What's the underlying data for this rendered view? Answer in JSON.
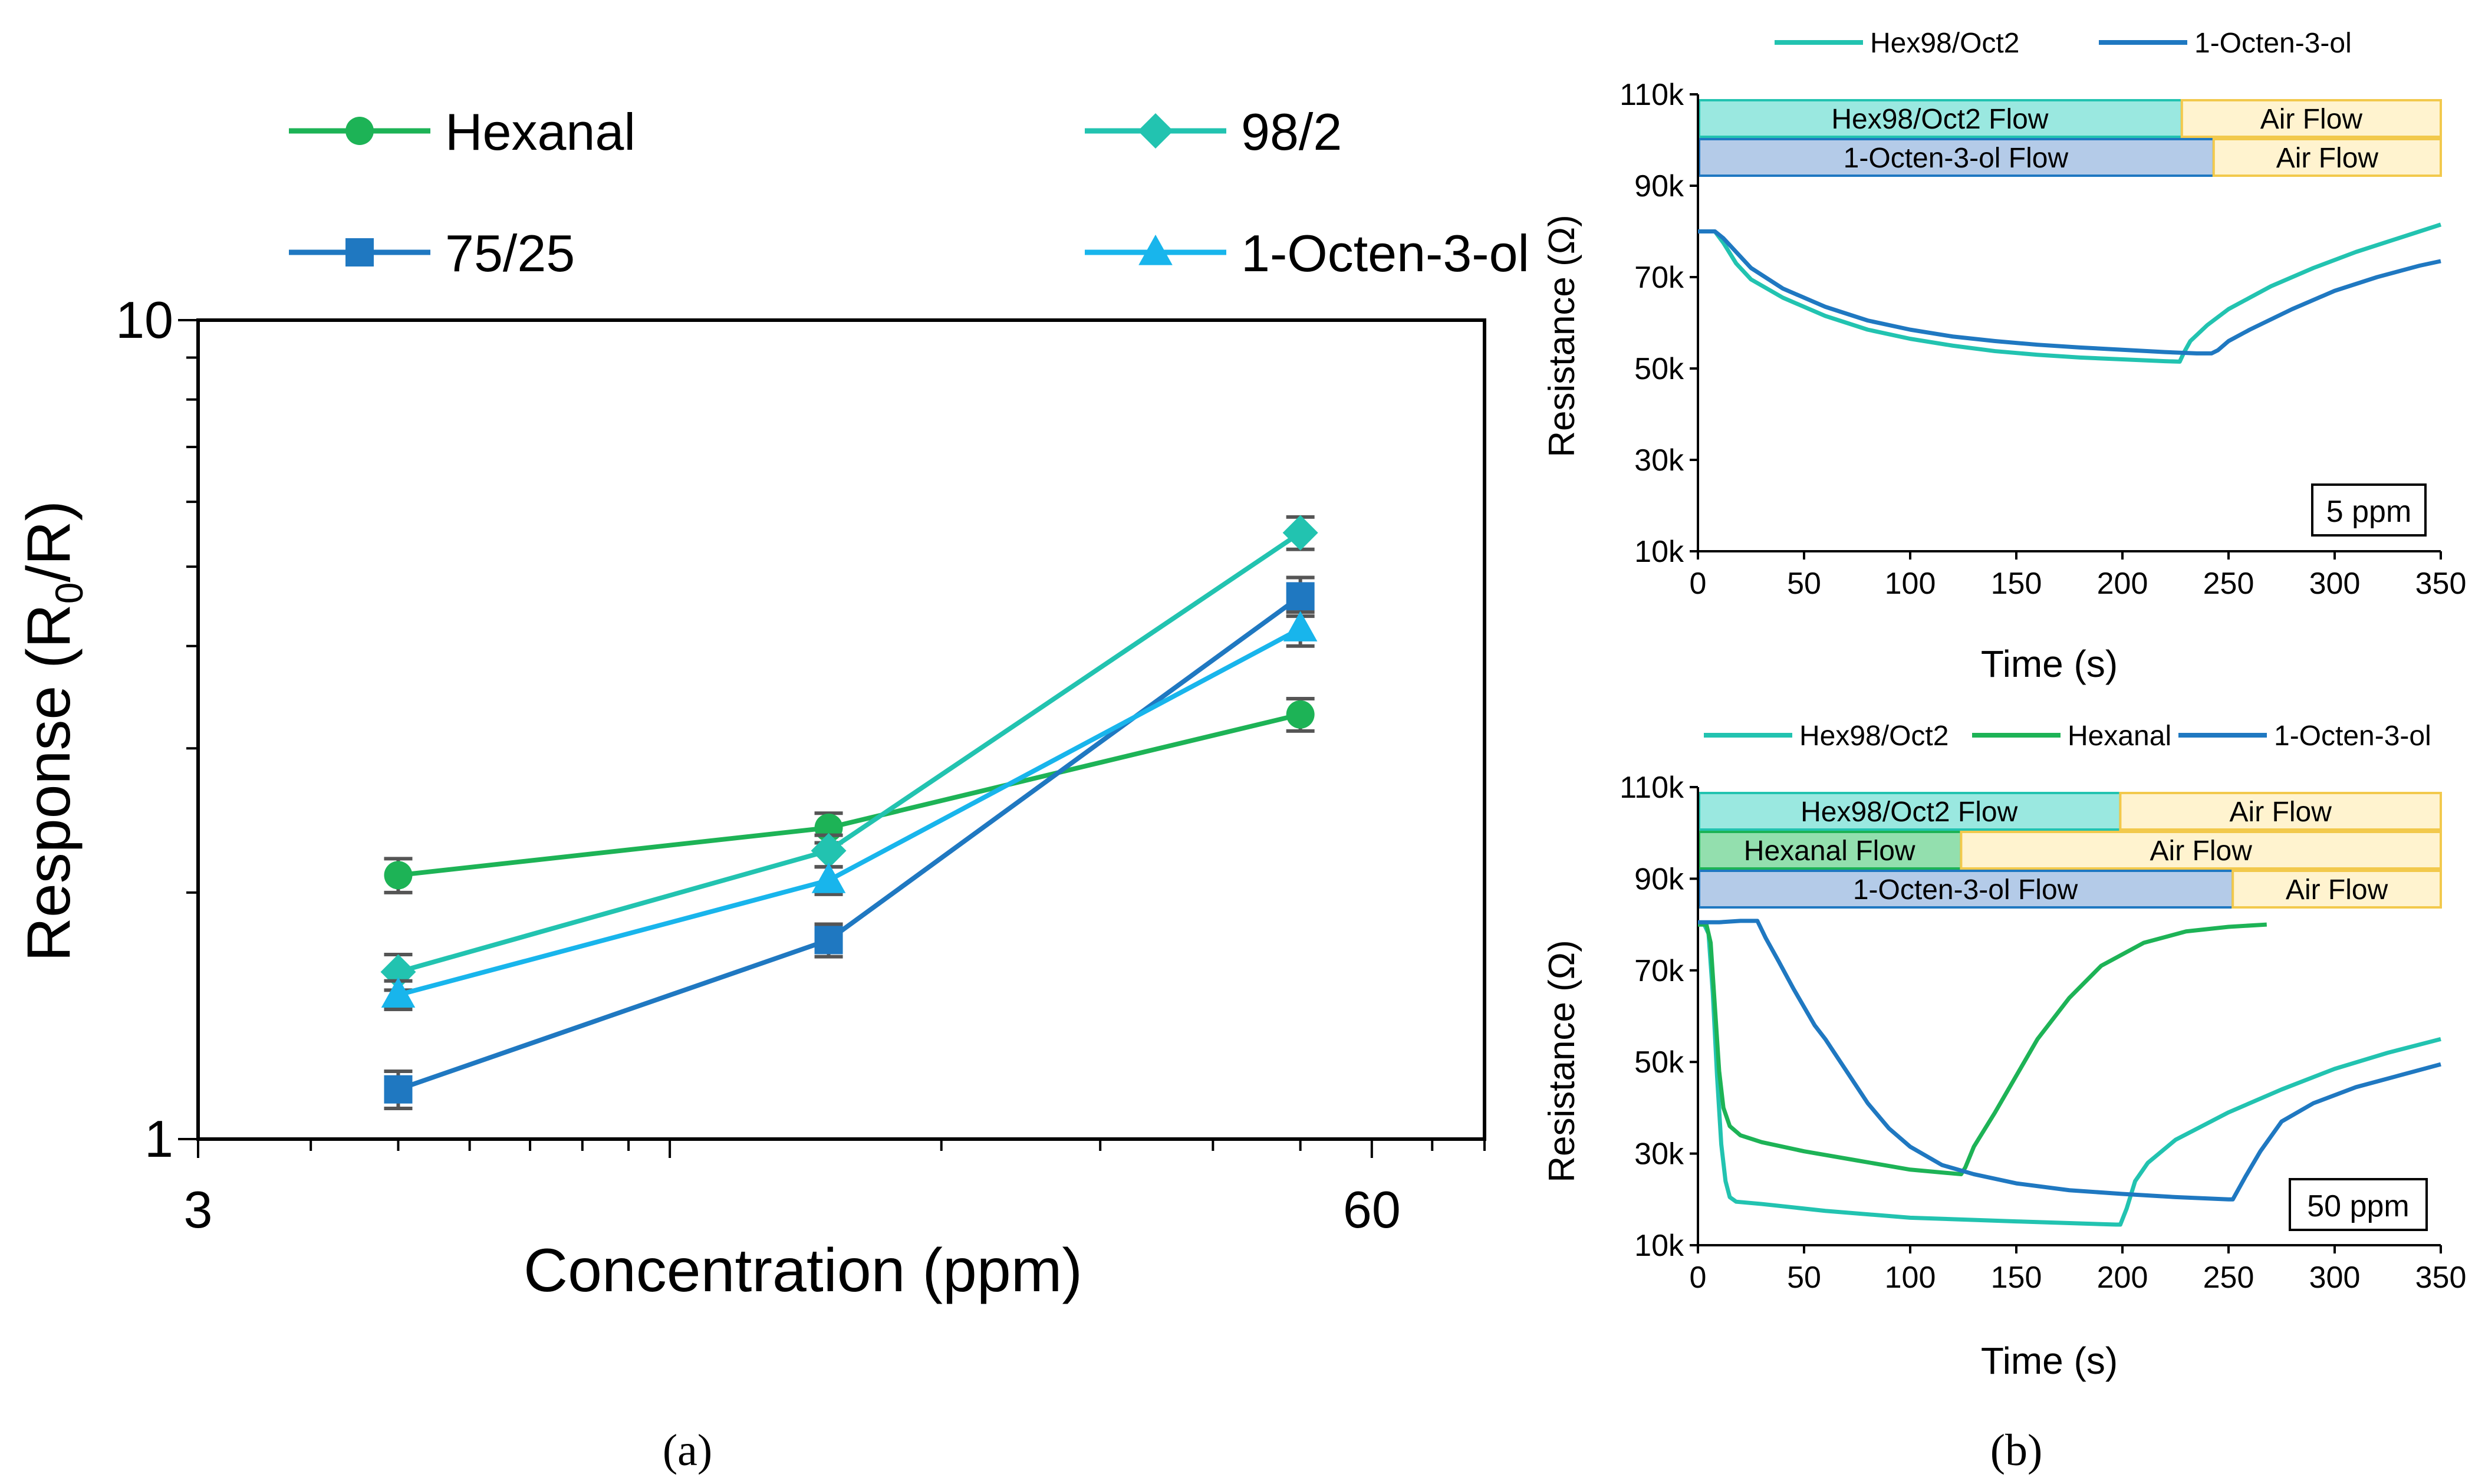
{
  "captions": {
    "a": "(a)",
    "b": "(b)"
  },
  "chart_data": [
    {
      "type": "line",
      "panel": "a",
      "xscale": "log",
      "yscale": "log",
      "xlabel": "Concentration (ppm)",
      "ylabel_main": "Response (R",
      "ylabel_sub": "0",
      "ylabel_end": "/R)",
      "xlim": [
        3,
        80
      ],
      "ylim": [
        1,
        10
      ],
      "x_tick_labels": [
        {
          "value": 3,
          "label": "3"
        },
        {
          "value": 60,
          "label": "60"
        }
      ],
      "y_tick_labels": [
        {
          "value": 1,
          "label": "1"
        },
        {
          "value": 10,
          "label": "10"
        }
      ],
      "legend_position": "top",
      "series": [
        {
          "name": "Hexanal",
          "marker": "circle",
          "color": "#1db356",
          "x": [
            5,
            15,
            50
          ],
          "y": [
            2.1,
            2.4,
            3.3
          ],
          "err": [
            0.1,
            0.1,
            0.15
          ]
        },
        {
          "name": "98/2",
          "marker": "diamond",
          "color": "#22c3b0",
          "x": [
            5,
            15,
            50
          ],
          "y": [
            1.6,
            2.25,
            5.5
          ],
          "err": [
            0.08,
            0.1,
            0.25
          ]
        },
        {
          "name": "75/25",
          "marker": "square",
          "color": "#1f78c1",
          "x": [
            5,
            15,
            50
          ],
          "y": [
            1.15,
            1.75,
            4.6
          ],
          "err": [
            0.06,
            0.08,
            0.25
          ]
        },
        {
          "name": "1-Octen-3-ol",
          "marker": "triangle",
          "color": "#18b5ec",
          "x": [
            5,
            15,
            50
          ],
          "y": [
            1.5,
            2.07,
            4.2
          ],
          "err": [
            0.06,
            0.08,
            0.2
          ]
        }
      ]
    },
    {
      "type": "line",
      "panel": "b-top",
      "xlabel": "Time (s)",
      "ylabel": "Resistance (Ω)",
      "xlim": [
        0,
        350
      ],
      "ylim": [
        10000,
        110000
      ],
      "x_ticks": [
        0,
        50,
        100,
        150,
        200,
        250,
        300,
        350
      ],
      "y_ticks": [
        {
          "value": 10000,
          "label": "10k"
        },
        {
          "value": 30000,
          "label": "30k"
        },
        {
          "value": 50000,
          "label": "50k"
        },
        {
          "value": 70000,
          "label": "70k"
        },
        {
          "value": 90000,
          "label": "90k"
        },
        {
          "value": 110000,
          "label": "110k"
        }
      ],
      "annotation": "5 ppm",
      "legend_position": "top",
      "flow_bars": [
        {
          "gas": "Hex98/Oct2 Flow",
          "air": "Air Flow",
          "switch": 228,
          "color": "#9ae8e0",
          "edge": "#22c3b0"
        },
        {
          "gas": "1-Octen-3-ol Flow",
          "air": "Air Flow",
          "switch": 243,
          "color": "#b4cbe8",
          "edge": "#1f78c1"
        }
      ],
      "series": [
        {
          "name": "Hex98/Oct2",
          "color": "#22c3b0",
          "x": [
            0,
            5,
            8,
            12,
            18,
            25,
            40,
            60,
            80,
            100,
            120,
            140,
            160,
            180,
            200,
            220,
            227,
            229,
            232,
            240,
            250,
            270,
            290,
            310,
            330,
            350
          ],
          "y": [
            80000,
            80000,
            80000,
            77500,
            73000,
            69500,
            65500,
            61500,
            58500,
            56500,
            55000,
            53800,
            53000,
            52400,
            52000,
            51600,
            51500,
            53500,
            56000,
            59500,
            63000,
            68000,
            72000,
            75500,
            78500,
            81500
          ]
        },
        {
          "name": "1-Octen-3-ol",
          "color": "#1f78c1",
          "x": [
            0,
            5,
            8,
            12,
            18,
            25,
            40,
            60,
            80,
            100,
            120,
            140,
            160,
            180,
            200,
            220,
            235,
            242,
            245,
            250,
            260,
            280,
            300,
            320,
            340,
            350
          ],
          "y": [
            80000,
            80000,
            80000,
            78500,
            75500,
            72000,
            67500,
            63500,
            60500,
            58500,
            57000,
            56000,
            55200,
            54600,
            54100,
            53600,
            53300,
            53300,
            54000,
            56000,
            58500,
            63000,
            67000,
            70000,
            72500,
            73500
          ]
        }
      ]
    },
    {
      "type": "line",
      "panel": "b-bottom",
      "xlabel": "Time (s)",
      "ylabel": "Resistance (Ω)",
      "xlim": [
        0,
        350
      ],
      "ylim": [
        10000,
        110000
      ],
      "x_ticks": [
        0,
        50,
        100,
        150,
        200,
        250,
        300,
        350
      ],
      "y_ticks": [
        {
          "value": 10000,
          "label": "10k"
        },
        {
          "value": 30000,
          "label": "30k"
        },
        {
          "value": 50000,
          "label": "50k"
        },
        {
          "value": 70000,
          "label": "70k"
        },
        {
          "value": 90000,
          "label": "90k"
        },
        {
          "value": 110000,
          "label": "110k"
        }
      ],
      "annotation": "50 ppm",
      "legend_position": "top",
      "flow_bars": [
        {
          "gas": "Hex98/Oct2 Flow",
          "air": "Air Flow",
          "switch": 199,
          "color": "#9ae8e0",
          "edge": "#22c3b0"
        },
        {
          "gas": "Hexanal Flow",
          "air": "Air Flow",
          "switch": 124,
          "color": "#93dfae",
          "edge": "#1db356"
        },
        {
          "gas": "1-Octen-3-ol Flow",
          "air": "Air Flow",
          "switch": 252,
          "color": "#b4cbe8",
          "edge": "#1f78c1"
        }
      ],
      "series": [
        {
          "name": "Hex98/Oct2",
          "color": "#22c3b0",
          "x": [
            0,
            3,
            5,
            7,
            9,
            11,
            13,
            15,
            18,
            30,
            60,
            100,
            150,
            197,
            199,
            202,
            206,
            212,
            225,
            250,
            275,
            300,
            325,
            350
          ],
          "y": [
            80000,
            80000,
            78000,
            65000,
            47000,
            32000,
            24000,
            20500,
            19500,
            19000,
            17500,
            16000,
            15200,
            14500,
            14500,
            18000,
            24000,
            28000,
            33000,
            39000,
            44000,
            48500,
            52000,
            55000
          ]
        },
        {
          "name": "Hexanal",
          "color": "#1db356",
          "x": [
            0,
            4,
            6,
            8,
            10,
            12,
            15,
            20,
            30,
            50,
            75,
            100,
            124,
            126,
            130,
            140,
            150,
            160,
            175,
            190,
            210,
            230,
            250,
            268
          ],
          "y": [
            80000,
            80000,
            76000,
            62000,
            48000,
            40000,
            36000,
            34000,
            32500,
            30500,
            28500,
            26500,
            25500,
            27000,
            31500,
            39000,
            47000,
            55000,
            64000,
            71000,
            76000,
            78500,
            79500,
            80000
          ]
        },
        {
          "name": "1-Octen-3-ol",
          "color": "#1f78c1",
          "x": [
            0,
            10,
            20,
            28,
            32,
            38,
            45,
            55,
            60,
            70,
            80,
            90,
            100,
            115,
            130,
            150,
            175,
            200,
            225,
            250,
            252,
            258,
            265,
            275,
            290,
            310,
            330,
            350
          ],
          "y": [
            80500,
            80500,
            80800,
            80800,
            77000,
            72000,
            66000,
            58000,
            55000,
            48000,
            41000,
            35500,
            31500,
            27500,
            25500,
            23500,
            22000,
            21200,
            20500,
            20000,
            20000,
            25000,
            30500,
            37000,
            41000,
            44500,
            47000,
            49500
          ]
        }
      ]
    }
  ]
}
